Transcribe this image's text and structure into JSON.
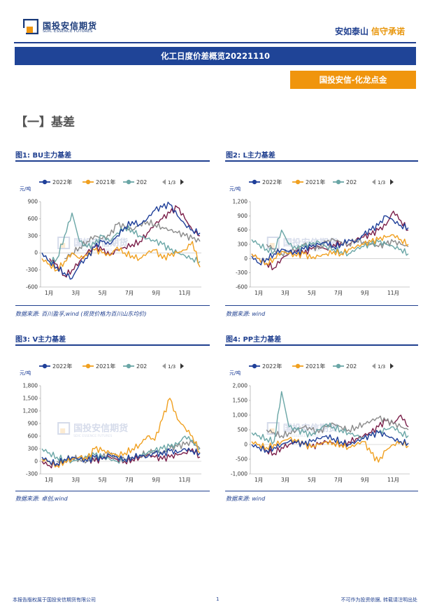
{
  "header": {
    "logo_cn": "国投安信期货",
    "logo_en": "SDIC ESSENCE FUTURES",
    "slogan_1": "安如泰山",
    "slogan_2": "信守承诺"
  },
  "report_title": "化工日度价差概览20221110",
  "tag": "国投安信-化龙点金",
  "section_title": "【一】基差",
  "watermark": {
    "cn": "国投安信期货",
    "en": "SDIC ESSENCE FUTURES"
  },
  "legend_pager": "1/3",
  "colors": {
    "navy": "#1f3f8f",
    "orange": "#f0950d",
    "y2022": "#1f3f99",
    "y2021": "#f0a020",
    "y2020": "#6aa6a6",
    "maroon": "#7b1f4a",
    "grey": "#8a8a8a"
  },
  "figures": [
    {
      "title": "图1: BU主力基差",
      "source": "数据来源: 百川盈孚,wind (现货价格为百川山东均价)"
    },
    {
      "title": "图2: L主力基差",
      "source": "数据来源: wind"
    },
    {
      "title": "图3: V主力基差",
      "source": "数据来源: 卓创,wind"
    },
    {
      "title": "图4: PP主力基差",
      "source": "数据来源: wind"
    }
  ],
  "chart_data": [
    {
      "type": "line",
      "title": "",
      "ylabel": "元/吨",
      "ylim": [
        -600,
        900
      ],
      "yticks": [
        "900",
        "600",
        "300",
        "0",
        "-300",
        "-600"
      ],
      "xticks": [
        "1月",
        "3月",
        "5月",
        "7月",
        "9月",
        "11月"
      ],
      "series": [
        {
          "name": "2022年",
          "color": "#1f3f99",
          "values": [
            0,
            -150,
            -250,
            -350,
            -450,
            -200,
            -100,
            100,
            200,
            150,
            300,
            450,
            550,
            500,
            600,
            750,
            800,
            850,
            650,
            500,
            400,
            350
          ]
        },
        {
          "name": "2021年",
          "color": "#f0a020",
          "values": [
            -100,
            -200,
            -300,
            -150,
            0,
            -100,
            -50,
            50,
            0,
            -50,
            100,
            0,
            -50,
            -100,
            0,
            50,
            -100,
            -50,
            0,
            50,
            200,
            -250
          ]
        },
        {
          "name": "202",
          "color": "#6aa6a6",
          "values": [
            0,
            -150,
            -100,
            300,
            700,
            200,
            100,
            150,
            300,
            200,
            350,
            450,
            400,
            300,
            250,
            200,
            150,
            50,
            0,
            -50,
            -100,
            -150
          ]
        }
      ],
      "extra_series": [
        {
          "color": "#7b1f4a",
          "values": [
            null,
            -100,
            -200,
            -400,
            -300,
            -150,
            0,
            100,
            50,
            -50,
            50,
            100,
            150,
            200,
            350,
            500,
            600,
            700,
            800,
            600,
            400,
            300
          ]
        },
        {
          "color": "#8a8a8a",
          "values": [
            null,
            null,
            null,
            -100,
            0,
            100,
            200,
            300,
            250,
            300,
            500,
            450,
            400,
            500,
            550,
            500,
            450,
            400,
            350,
            300,
            250,
            200
          ]
        }
      ]
    },
    {
      "type": "line",
      "title": "",
      "ylabel": "元/吨",
      "ylim": [
        -600,
        1200
      ],
      "yticks": [
        "1,200",
        "900",
        "600",
        "300",
        "0",
        "-300",
        "-600"
      ],
      "xticks": [
        "1月",
        "3月",
        "5月",
        "7月",
        "9月",
        "11月"
      ],
      "series": [
        {
          "name": "2022年",
          "color": "#1f3f99",
          "values": [
            50,
            -100,
            0,
            100,
            200,
            150,
            100,
            200,
            250,
            300,
            350,
            250,
            300,
            400,
            350,
            500,
            600,
            700,
            900,
            800,
            700,
            650
          ]
        },
        {
          "name": "2021年",
          "color": "#f0a020",
          "values": [
            100,
            0,
            -100,
            0,
            150,
            100,
            50,
            100,
            0,
            50,
            100,
            150,
            100,
            200,
            250,
            300,
            350,
            400,
            450,
            500,
            400,
            300
          ]
        },
        {
          "name": "202",
          "color": "#6aa6a6",
          "values": [
            400,
            300,
            200,
            150,
            600,
            300,
            200,
            250,
            300,
            350,
            250,
            200,
            150,
            100,
            200,
            250,
            300,
            350,
            300,
            250,
            200,
            100
          ]
        }
      ],
      "extra_series": [
        {
          "color": "#7b1f4a",
          "values": [
            100,
            0,
            -100,
            -200,
            0,
            100,
            150,
            100,
            200,
            250,
            200,
            300,
            350,
            300,
            400,
            450,
            500,
            600,
            700,
            1000,
            800,
            600
          ]
        },
        {
          "color": "#8a8a8a",
          "values": [
            null,
            null,
            300,
            200,
            100,
            150,
            200,
            300,
            250,
            200,
            350,
            400,
            350,
            300,
            400,
            350,
            300,
            250,
            300,
            350,
            300,
            250
          ]
        }
      ]
    },
    {
      "type": "line",
      "title": "",
      "ylabel": "元/吨",
      "ylim": [
        -300,
        1800
      ],
      "yticks": [
        "1,800",
        "1,500",
        "1,200",
        "900",
        "600",
        "300",
        "0",
        "-300"
      ],
      "xticks": [
        "1月",
        "3月",
        "5月",
        "7月",
        "9月",
        "11月"
      ],
      "series": [
        {
          "name": "2022年",
          "color": "#1f3f99",
          "values": [
            100,
            0,
            -50,
            50,
            100,
            50,
            0,
            100,
            50,
            150,
            100,
            50,
            100,
            150,
            100,
            200,
            150,
            250,
            200,
            300,
            250,
            200
          ]
        },
        {
          "name": "2021年",
          "color": "#f0a020",
          "values": [
            50,
            0,
            -100,
            0,
            50,
            100,
            50,
            300,
            250,
            200,
            150,
            200,
            300,
            400,
            600,
            500,
            1000,
            1500,
            1000,
            800,
            600,
            200
          ]
        },
        {
          "name": "202",
          "color": "#6aa6a6",
          "values": [
            300,
            200,
            100,
            50,
            0,
            50,
            100,
            150,
            100,
            50,
            0,
            50,
            100,
            150,
            200,
            250,
            300,
            350,
            400,
            600,
            500,
            300
          ]
        }
      ],
      "extra_series": [
        {
          "color": "#7b1f4a",
          "values": [
            0,
            -100,
            -50,
            0,
            50,
            100,
            50,
            0,
            50,
            100,
            50,
            0,
            50,
            100,
            150,
            100,
            50,
            100,
            150,
            200,
            300,
            100
          ]
        },
        {
          "color": "#8a8a8a",
          "values": [
            null,
            null,
            0,
            50,
            100,
            50,
            0,
            50,
            100,
            150,
            100,
            50,
            100,
            150,
            200,
            250,
            200,
            300,
            350,
            400,
            450,
            300
          ]
        }
      ]
    },
    {
      "type": "line",
      "title": "",
      "ylabel": "元/吨",
      "ylim": [
        -1000,
        2000
      ],
      "yticks": [
        "2,000",
        "1,500",
        "1,000",
        "500",
        "0",
        "-500",
        "-1,000"
      ],
      "xticks": [
        "1月",
        "3月",
        "5月",
        "7月",
        "9月",
        "11月"
      ],
      "series": [
        {
          "name": "2022年",
          "color": "#1f3f99",
          "values": [
            0,
            -100,
            -200,
            -100,
            0,
            100,
            50,
            0,
            100,
            200,
            300,
            200,
            100,
            0,
            100,
            200,
            300,
            400,
            300,
            200,
            100,
            50
          ]
        },
        {
          "name": "2021年",
          "color": "#f0a020",
          "values": [
            100,
            0,
            -100,
            0,
            100,
            200,
            100,
            0,
            -100,
            0,
            100,
            50,
            0,
            -100,
            0,
            100,
            -300,
            -600,
            -200,
            0,
            100,
            -50
          ]
        },
        {
          "name": "202",
          "color": "#6aa6a6",
          "values": [
            400,
            300,
            200,
            100,
            1800,
            600,
            500,
            400,
            300,
            500,
            700,
            600,
            500,
            400,
            300,
            200,
            300,
            400,
            500,
            600,
            400,
            300
          ]
        }
      ],
      "extra_series": [
        {
          "color": "#7b1f4a",
          "values": [
            null,
            0,
            -200,
            -300,
            -100,
            0,
            100,
            0,
            -100,
            0,
            100,
            50,
            0,
            100,
            200,
            300,
            400,
            600,
            800,
            700,
            1000,
            600
          ]
        },
        {
          "color": "#8a8a8a",
          "values": [
            null,
            null,
            500,
            400,
            300,
            400,
            500,
            600,
            500,
            400,
            600,
            700,
            600,
            500,
            600,
            700,
            800,
            900,
            800,
            700,
            600,
            500
          ]
        }
      ]
    }
  ],
  "footer": {
    "left": "本报告版权属于国投安信期货有限公司",
    "page": "1",
    "right": "不可作为投资依据, 转载请注明出处"
  }
}
